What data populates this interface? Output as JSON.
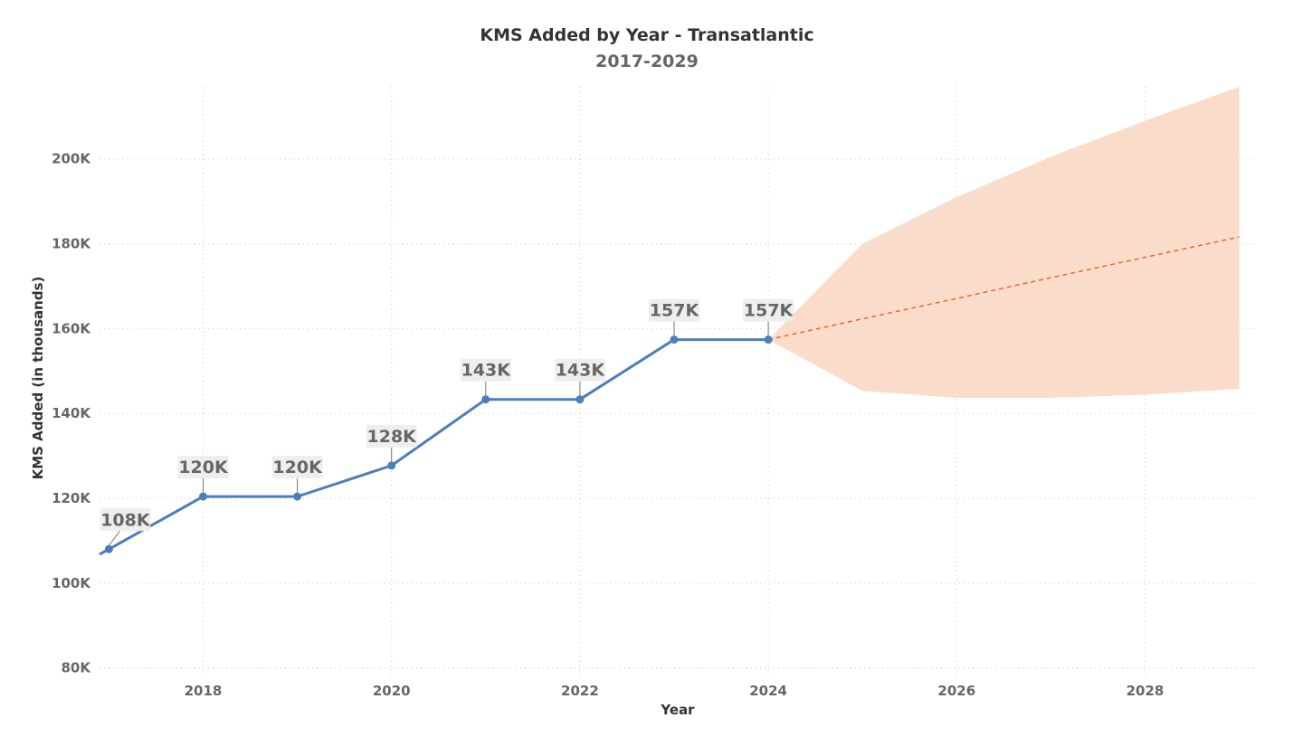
{
  "chart_data": {
    "type": "line",
    "title": "KMS Added by Year - Transatlantic",
    "subtitle": "2017-2029",
    "xlabel": "Year",
    "ylabel": "KMS Added (in thousands)",
    "xlim": [
      2016.9,
      2029.1
    ],
    "ylim": [
      78000,
      217000
    ],
    "x_ticks": [
      2018,
      2020,
      2022,
      2024,
      2026,
      2028
    ],
    "x_tick_labels": [
      "2018",
      "2020",
      "2022",
      "2024",
      "2026",
      "2028"
    ],
    "y_ticks": [
      80000,
      100000,
      120000,
      140000,
      160000,
      180000,
      200000
    ],
    "y_tick_labels": [
      "80K",
      "100K",
      "120K",
      "140K",
      "160K",
      "180K",
      "200K"
    ],
    "grid": true,
    "series": [
      {
        "name": "KMS Added",
        "color": "#4a7fbc",
        "x": [
          2017,
          2018,
          2019,
          2020,
          2021,
          2022,
          2023,
          2024
        ],
        "values": [
          108000,
          120400,
          120400,
          127700,
          143300,
          143300,
          157400,
          157400
        ],
        "labels": [
          "108K",
          "120K",
          "120K",
          "128K",
          "143K",
          "143K",
          "157K",
          "157K"
        ]
      }
    ],
    "forecast": {
      "name": "Forecast",
      "color": "#e8682a",
      "band_color": "#fadccb",
      "x": [
        2024,
        2025,
        2026,
        2027,
        2028,
        2029
      ],
      "values": [
        157400,
        162300,
        167100,
        172000,
        176800,
        181600
      ],
      "upper": [
        157400,
        180000,
        191000,
        200500,
        209000,
        217000
      ],
      "lower": [
        157400,
        145300,
        143700,
        143700,
        144400,
        145800
      ]
    }
  }
}
